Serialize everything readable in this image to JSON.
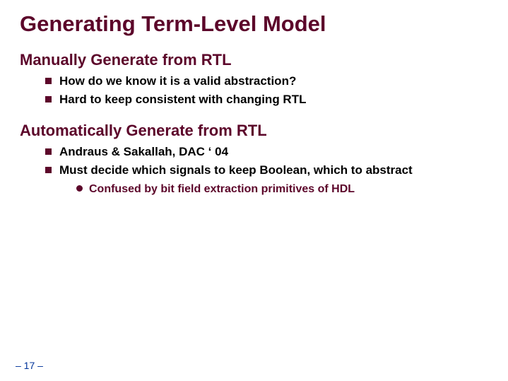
{
  "colors": {
    "title": "#5c062a",
    "section": "#5c062a",
    "bullet1_text": "#000000",
    "bullet1_marker": "#5c062a",
    "bullet2_text": "#5c062a",
    "bullet2_marker": "#5c062a",
    "footer": "#003399",
    "background": "#ffffff"
  },
  "typography": {
    "title_fontsize": 31,
    "section_fontsize": 22,
    "bullet1_fontsize": 17,
    "bullet2_fontsize": 16,
    "footer_fontsize": 14
  },
  "title": "Generating Term-Level Model",
  "sections": [
    {
      "heading": "Manually Generate from RTL",
      "bullets": [
        {
          "text": "How do we know it is a valid abstraction?"
        },
        {
          "text": "Hard to keep consistent with changing RTL"
        }
      ]
    },
    {
      "heading": "Automatically Generate from RTL",
      "bullets": [
        {
          "text": "Andraus & Sakallah, DAC ‘ 04"
        },
        {
          "text": "Must decide which signals to keep Boolean, which to abstract",
          "sub": [
            {
              "text": "Confused by bit field extraction primitives of HDL"
            }
          ]
        }
      ]
    }
  ],
  "footer": "– 17 –"
}
